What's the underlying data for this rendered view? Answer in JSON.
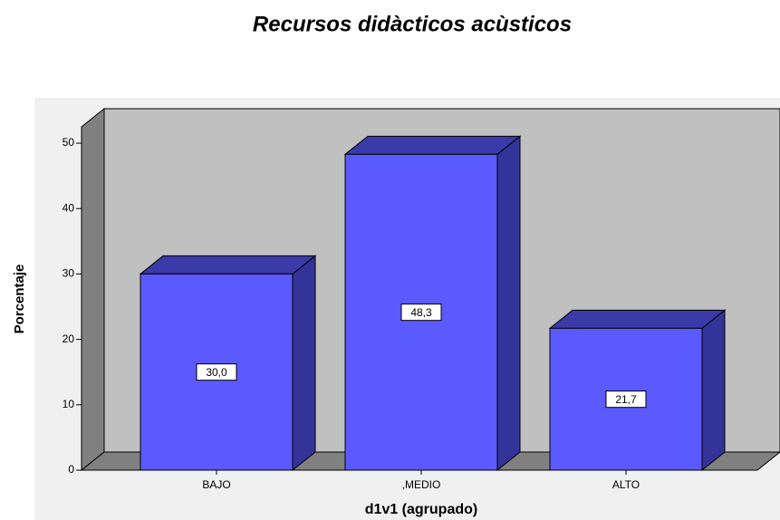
{
  "chart_data": {
    "type": "bar3d",
    "title": "Recursos didàcticos acùsticos",
    "x_label": "d1v1 (agrupado)",
    "y_label": "Porcentaje",
    "categories": [
      "BAJO",
      ",MEDIO",
      "ALTO"
    ],
    "values": [
      30.0,
      48.3,
      21.7
    ],
    "value_labels": [
      "30,0",
      "48,3",
      "21,7"
    ],
    "color": "#5a5aff",
    "ylim": [
      0,
      52.5
    ],
    "yticks": [
      0,
      10,
      20,
      30,
      40,
      50
    ]
  }
}
